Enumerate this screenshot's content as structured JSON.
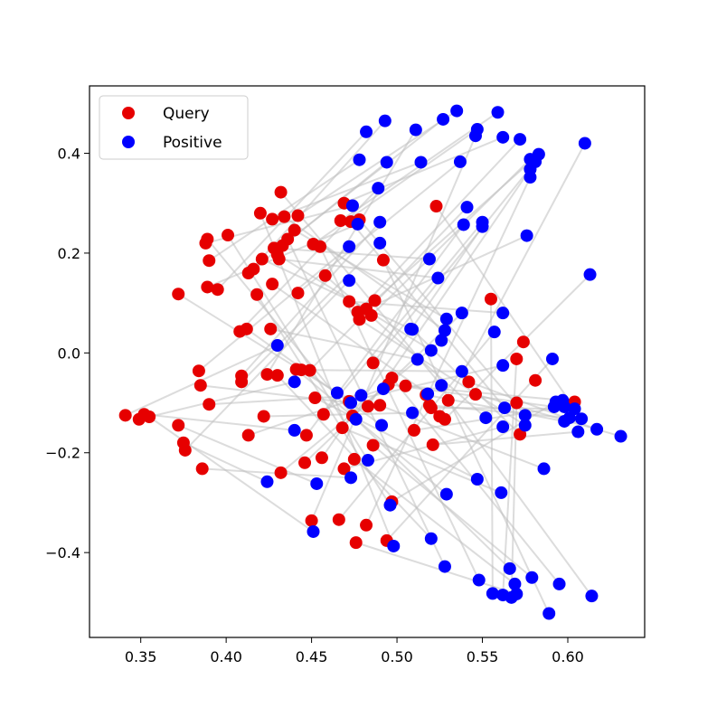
{
  "chart_data": {
    "type": "scatter",
    "title": "",
    "xlabel": "",
    "ylabel": "",
    "xlim": [
      0.32,
      0.645
    ],
    "ylim": [
      -0.57,
      0.535
    ],
    "xticks": [
      0.35,
      0.4,
      0.45,
      0.5,
      0.55,
      0.6
    ],
    "xtick_labels": [
      "0.35",
      "0.40",
      "0.45",
      "0.50",
      "0.55",
      "0.60"
    ],
    "yticks": [
      -0.4,
      -0.2,
      0.0,
      0.2,
      0.4
    ],
    "ytick_labels": [
      "−0.4",
      "−0.2",
      "0.0",
      "0.2",
      "0.4"
    ],
    "grid": false,
    "legend_position": "top-left",
    "pair_line_color": "#bfbfbf",
    "series": [
      {
        "name": "Query",
        "color": "#e60000",
        "points": [
          [
            0.341,
            -0.125
          ],
          [
            0.349,
            -0.133
          ],
          [
            0.352,
            -0.123
          ],
          [
            0.355,
            -0.128
          ],
          [
            0.372,
            -0.145
          ],
          [
            0.372,
            0.118
          ],
          [
            0.375,
            -0.18
          ],
          [
            0.376,
            -0.195
          ],
          [
            0.384,
            -0.036
          ],
          [
            0.385,
            -0.065
          ],
          [
            0.386,
            -0.232
          ],
          [
            0.388,
            0.22
          ],
          [
            0.389,
            0.228
          ],
          [
            0.389,
            0.132
          ],
          [
            0.39,
            0.185
          ],
          [
            0.39,
            -0.103
          ],
          [
            0.395,
            0.127
          ],
          [
            0.401,
            0.236
          ],
          [
            0.408,
            0.043
          ],
          [
            0.409,
            -0.046
          ],
          [
            0.409,
            -0.058
          ],
          [
            0.412,
            0.048
          ],
          [
            0.413,
            -0.165
          ],
          [
            0.413,
            0.16
          ],
          [
            0.416,
            0.168
          ],
          [
            0.418,
            0.117
          ],
          [
            0.42,
            0.28
          ],
          [
            0.421,
            0.188
          ],
          [
            0.422,
            -0.127
          ],
          [
            0.424,
            -0.043
          ],
          [
            0.426,
            0.048
          ],
          [
            0.427,
            0.268
          ],
          [
            0.427,
            0.138
          ],
          [
            0.428,
            0.21
          ],
          [
            0.43,
            0.197
          ],
          [
            0.43,
            -0.045
          ],
          [
            0.431,
            0.188
          ],
          [
            0.432,
            0.322
          ],
          [
            0.432,
            -0.24
          ],
          [
            0.433,
            0.215
          ],
          [
            0.434,
            0.273
          ],
          [
            0.436,
            0.228
          ],
          [
            0.44,
            0.246
          ],
          [
            0.441,
            -0.033
          ],
          [
            0.442,
            0.275
          ],
          [
            0.442,
            0.12
          ],
          [
            0.444,
            -0.034
          ],
          [
            0.446,
            -0.22
          ],
          [
            0.447,
            -0.165
          ],
          [
            0.449,
            -0.035
          ],
          [
            0.45,
            -0.336
          ],
          [
            0.451,
            0.218
          ],
          [
            0.452,
            -0.09
          ],
          [
            0.455,
            0.213
          ],
          [
            0.456,
            -0.21
          ],
          [
            0.457,
            -0.123
          ],
          [
            0.458,
            0.155
          ],
          [
            0.466,
            -0.334
          ],
          [
            0.467,
            0.265
          ],
          [
            0.468,
            -0.15
          ],
          [
            0.469,
            0.3
          ],
          [
            0.469,
            -0.232
          ],
          [
            0.472,
            -0.097
          ],
          [
            0.472,
            0.103
          ],
          [
            0.473,
            0.263
          ],
          [
            0.474,
            -0.126
          ],
          [
            0.475,
            -0.213
          ],
          [
            0.476,
            -0.38
          ],
          [
            0.477,
            0.082
          ],
          [
            0.478,
            0.267
          ],
          [
            0.478,
            0.067
          ],
          [
            0.482,
            0.088
          ],
          [
            0.482,
            -0.345
          ],
          [
            0.483,
            -0.107
          ],
          [
            0.485,
            0.075
          ],
          [
            0.486,
            -0.185
          ],
          [
            0.486,
            -0.02
          ],
          [
            0.487,
            0.105
          ],
          [
            0.49,
            -0.105
          ],
          [
            0.492,
            0.186
          ],
          [
            0.494,
            -0.376
          ],
          [
            0.495,
            -0.063
          ],
          [
            0.497,
            -0.298
          ],
          [
            0.497,
            -0.05
          ],
          [
            0.505,
            -0.066
          ],
          [
            0.51,
            -0.155
          ],
          [
            0.517,
            -0.084
          ],
          [
            0.519,
            -0.105
          ],
          [
            0.52,
            -0.11
          ],
          [
            0.521,
            -0.184
          ],
          [
            0.523,
            0.294
          ],
          [
            0.525,
            -0.127
          ],
          [
            0.528,
            -0.133
          ],
          [
            0.53,
            -0.095
          ],
          [
            0.542,
            -0.058
          ],
          [
            0.546,
            -0.083
          ],
          [
            0.555,
            0.108
          ],
          [
            0.57,
            -0.012
          ],
          [
            0.57,
            -0.1
          ],
          [
            0.572,
            -0.163
          ],
          [
            0.574,
            0.022
          ],
          [
            0.581,
            -0.055
          ],
          [
            0.604,
            -0.098
          ]
        ]
      },
      {
        "name": "Positive",
        "color": "#0000ff",
        "points": [
          [
            0.43,
            0.015
          ],
          [
            0.44,
            -0.058
          ],
          [
            0.44,
            -0.155
          ],
          [
            0.451,
            -0.358
          ],
          [
            0.453,
            -0.262
          ],
          [
            0.465,
            -0.08
          ],
          [
            0.424,
            -0.258
          ],
          [
            0.472,
            0.145
          ],
          [
            0.472,
            0.213
          ],
          [
            0.473,
            -0.1
          ],
          [
            0.473,
            -0.25
          ],
          [
            0.474,
            0.295
          ],
          [
            0.476,
            -0.133
          ],
          [
            0.477,
            0.258
          ],
          [
            0.478,
            0.387
          ],
          [
            0.479,
            -0.085
          ],
          [
            0.482,
            0.443
          ],
          [
            0.483,
            -0.215
          ],
          [
            0.489,
            0.33
          ],
          [
            0.49,
            0.262
          ],
          [
            0.49,
            0.22
          ],
          [
            0.491,
            -0.145
          ],
          [
            0.492,
            -0.072
          ],
          [
            0.493,
            0.465
          ],
          [
            0.494,
            0.382
          ],
          [
            0.496,
            -0.305
          ],
          [
            0.498,
            -0.387
          ],
          [
            0.508,
            0.048
          ],
          [
            0.509,
            -0.12
          ],
          [
            0.511,
            0.447
          ],
          [
            0.512,
            -0.013
          ],
          [
            0.514,
            0.382
          ],
          [
            0.518,
            -0.082
          ],
          [
            0.519,
            0.188
          ],
          [
            0.52,
            0.005
          ],
          [
            0.52,
            -0.372
          ],
          [
            0.524,
            0.15
          ],
          [
            0.526,
            -0.065
          ],
          [
            0.526,
            0.025
          ],
          [
            0.527,
            0.468
          ],
          [
            0.528,
            0.045
          ],
          [
            0.528,
            -0.428
          ],
          [
            0.529,
            0.068
          ],
          [
            0.529,
            -0.283
          ],
          [
            0.535,
            0.485
          ],
          [
            0.537,
            0.383
          ],
          [
            0.538,
            -0.037
          ],
          [
            0.538,
            0.08
          ],
          [
            0.539,
            0.257
          ],
          [
            0.541,
            0.292
          ],
          [
            0.546,
            0.435
          ],
          [
            0.547,
            0.448
          ],
          [
            0.547,
            -0.253
          ],
          [
            0.548,
            -0.455
          ],
          [
            0.55,
            0.253
          ],
          [
            0.55,
            0.262
          ],
          [
            0.552,
            -0.13
          ],
          [
            0.557,
            0.042
          ],
          [
            0.559,
            0.482
          ],
          [
            0.561,
            -0.28
          ],
          [
            0.562,
            0.432
          ],
          [
            0.562,
            -0.148
          ],
          [
            0.562,
            -0.025
          ],
          [
            0.562,
            0.08
          ],
          [
            0.563,
            -0.11
          ],
          [
            0.566,
            -0.432
          ],
          [
            0.569,
            -0.463
          ],
          [
            0.57,
            -0.483
          ],
          [
            0.572,
            0.428
          ],
          [
            0.575,
            -0.125
          ],
          [
            0.575,
            -0.145
          ],
          [
            0.576,
            0.235
          ],
          [
            0.578,
            0.352
          ],
          [
            0.578,
            0.368
          ],
          [
            0.578,
            0.388
          ],
          [
            0.579,
            -0.45
          ],
          [
            0.581,
            0.383
          ],
          [
            0.583,
            0.398
          ],
          [
            0.586,
            -0.232
          ],
          [
            0.589,
            -0.522
          ],
          [
            0.591,
            -0.012
          ],
          [
            0.592,
            -0.108
          ],
          [
            0.593,
            -0.098
          ],
          [
            0.595,
            -0.463
          ],
          [
            0.597,
            -0.095
          ],
          [
            0.598,
            -0.108
          ],
          [
            0.598,
            -0.137
          ],
          [
            0.601,
            -0.13
          ],
          [
            0.604,
            -0.112
          ],
          [
            0.606,
            -0.158
          ],
          [
            0.608,
            -0.132
          ],
          [
            0.61,
            0.42
          ],
          [
            0.613,
            0.157
          ],
          [
            0.614,
            -0.487
          ],
          [
            0.617,
            -0.153
          ],
          [
            0.631,
            -0.167
          ],
          [
            0.556,
            -0.482
          ],
          [
            0.562,
            -0.485
          ],
          [
            0.567,
            -0.49
          ],
          [
            0.509,
            0.047
          ]
        ]
      }
    ]
  },
  "legend": {
    "items": [
      {
        "label": "Query",
        "color": "#e60000"
      },
      {
        "label": "Positive",
        "color": "#0000ff"
      }
    ]
  }
}
